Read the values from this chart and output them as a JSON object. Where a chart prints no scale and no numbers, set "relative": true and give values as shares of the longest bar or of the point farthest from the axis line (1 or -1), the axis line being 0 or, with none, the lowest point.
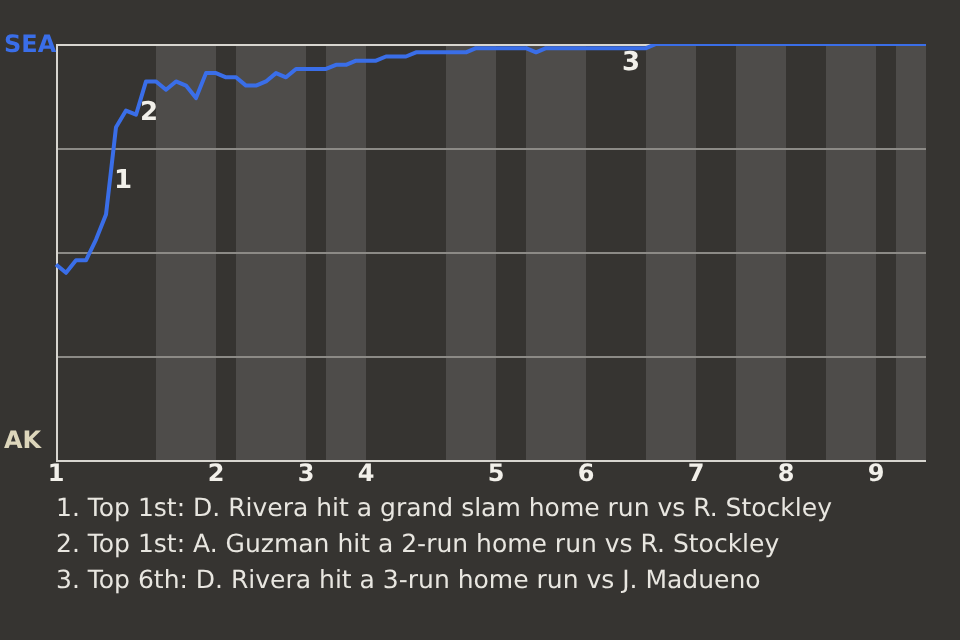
{
  "chart_data": {
    "type": "line",
    "relative": true,
    "categories": [
      "1",
      null,
      null,
      null,
      null,
      null,
      null,
      null,
      null,
      null,
      null,
      null,
      null,
      null,
      null,
      null,
      "2",
      null,
      null,
      null,
      null,
      null,
      null,
      null,
      null,
      "3",
      null,
      null,
      null,
      null,
      null,
      "4",
      null,
      null,
      null,
      null,
      null,
      null,
      null,
      null,
      null,
      null,
      null,
      null,
      "5",
      null,
      null,
      null,
      null,
      null,
      null,
      null,
      null,
      "6",
      null,
      null,
      null,
      null,
      null,
      null,
      null,
      null,
      null,
      null,
      "7",
      null,
      null,
      null,
      null,
      null,
      null,
      null,
      null,
      "8",
      null,
      null,
      null,
      null,
      null,
      null,
      null,
      null,
      "9",
      null,
      null,
      null,
      null,
      null
    ],
    "series": [
      {
        "color": "#3a6ee8",
        "values": [
          0.47,
          0.45,
          0.48,
          0.48,
          0.53,
          0.59,
          0.8,
          0.84,
          0.83,
          0.91,
          0.91,
          0.89,
          0.91,
          0.9,
          0.87,
          0.93,
          0.93,
          0.92,
          0.92,
          0.9,
          0.9,
          0.91,
          0.93,
          0.92,
          0.94,
          0.94,
          0.94,
          0.94,
          0.95,
          0.95,
          0.96,
          0.96,
          0.96,
          0.97,
          0.97,
          0.97,
          0.98,
          0.98,
          0.98,
          0.98,
          0.98,
          0.98,
          0.99,
          0.99,
          0.99,
          0.99,
          0.99,
          0.99,
          0.98,
          0.99,
          0.99,
          0.99,
          0.99,
          0.99,
          0.99,
          0.99,
          0.99,
          0.99,
          0.99,
          0.99,
          1,
          1,
          1,
          1,
          1,
          1,
          1,
          1,
          1,
          1,
          1,
          1,
          1,
          1,
          1,
          1,
          1,
          1,
          1,
          1,
          1,
          1,
          1,
          1,
          1,
          1,
          1,
          1
        ]
      }
    ],
    "annotations": [
      "SEA",
      "AK",
      "1",
      "2",
      "3",
      "1. Top 1st: D. Rivera hit a grand slam home run vs R. Stockley",
      "2. Top 1st: A. Guzman hit a 2-run home run vs R. Stockley",
      "3. Top 6th: D. Rivera hit a 3-run home run vs J. Madueno"
    ],
    "legend": false
  }
}
